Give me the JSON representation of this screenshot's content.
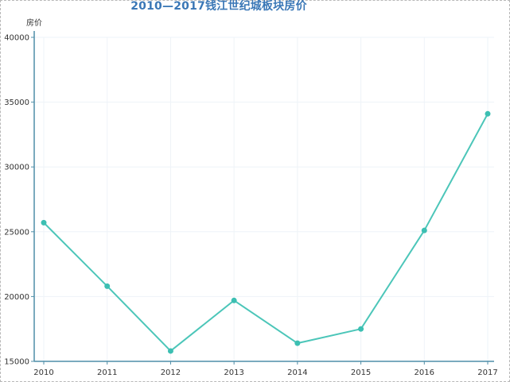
{
  "colors": {
    "line": "#4cc6b9",
    "point": "#3cbfb2",
    "axis": "#4f8ea8",
    "grid": "#eef3f8",
    "title": "#3a77b6"
  },
  "chart_data": {
    "type": "line",
    "title": "2010—2017钱江世纪城板块房价",
    "xlabel": "",
    "ylabel": "房价",
    "categories": [
      "2010",
      "2011",
      "2012",
      "2013",
      "2014",
      "2015",
      "2016",
      "2017"
    ],
    "y_ticks": [
      "15000",
      "20000",
      "25000",
      "30000",
      "35000",
      "40000"
    ],
    "ylim": [
      15000,
      40000
    ],
    "grid": true,
    "series": [
      {
        "name": "",
        "values": [
          25700,
          20800,
          15800,
          19700,
          16400,
          17500,
          25100,
          34100
        ]
      }
    ]
  }
}
